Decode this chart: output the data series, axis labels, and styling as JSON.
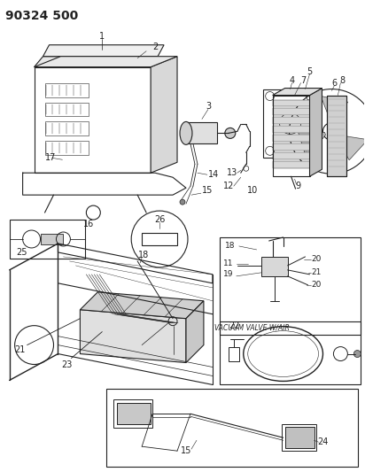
{
  "title": "90324 500",
  "bg_color": "#ffffff",
  "line_color": "#222222",
  "title_fontsize": 10,
  "label_fontsize": 7,
  "fig_width": 4.12,
  "fig_height": 5.33,
  "dpi": 100,
  "vacuum_valve_label": "VACUUM VALVE W/AIR"
}
